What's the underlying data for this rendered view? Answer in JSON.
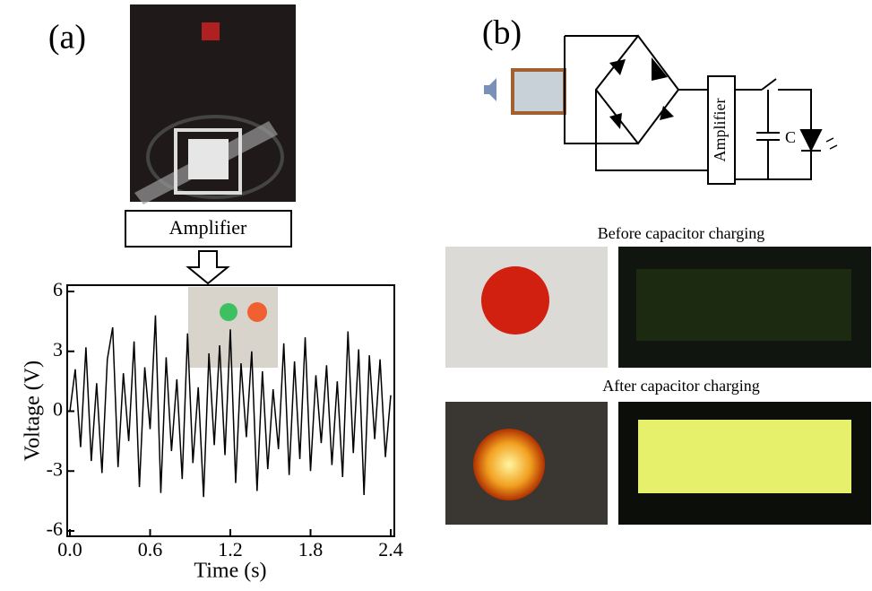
{
  "panel_a": {
    "label": "(a)",
    "amplifier": "Amplifier"
  },
  "panel_b": {
    "label": "(b)",
    "circuit": {
      "amplifier": "Amplifier",
      "capacitor": "C"
    },
    "before_caption": "Before capacitor charging",
    "after_caption": "After capacitor charging"
  },
  "chart_data": {
    "type": "line",
    "xlabel": "Time (s)",
    "ylabel": "Voltage (V)",
    "x": [
      0,
      0.04,
      0.08,
      0.12,
      0.16,
      0.2,
      0.24,
      0.28,
      0.32,
      0.36,
      0.4,
      0.44,
      0.48,
      0.52,
      0.56,
      0.6,
      0.64,
      0.68,
      0.72,
      0.76,
      0.8,
      0.84,
      0.88,
      0.92,
      0.96,
      1,
      1.04,
      1.08,
      1.12,
      1.16,
      1.2,
      1.24,
      1.28,
      1.32,
      1.36,
      1.4,
      1.44,
      1.48,
      1.52,
      1.56,
      1.6,
      1.64,
      1.68,
      1.72,
      1.76,
      1.8,
      1.84,
      1.88,
      1.92,
      1.96,
      2,
      2.04,
      2.08,
      2.12,
      2.16,
      2.2,
      2.24,
      2.28,
      2.32,
      2.36,
      2.4
    ],
    "series": [
      {
        "color": "#000000",
        "values": [
          0,
          2.1,
          -1.8,
          3.2,
          -2.5,
          1.4,
          -3.1,
          2.6,
          4.2,
          -2.8,
          1.9,
          -1.5,
          3.5,
          -3.8,
          2.2,
          -0.9,
          4.8,
          -4.1,
          2.7,
          -2.0,
          1.6,
          -3.4,
          3.9,
          -2.6,
          1.2,
          -4.3,
          2.9,
          -1.7,
          3.3,
          -2.2,
          4.1,
          -3.6,
          2.4,
          -1.3,
          3.0,
          -4.0,
          2.0,
          -2.9,
          1.1,
          -1.9,
          3.4,
          -3.2,
          2.5,
          -2.4,
          3.7,
          -3.0,
          1.8,
          -1.6,
          2.3,
          -2.7,
          1.5,
          -3.3,
          4.0,
          -2.1,
          3.1,
          -4.2,
          2.8,
          -1.4,
          2.6,
          -2.3,
          0.8
        ]
      }
    ],
    "xlim": [
      0,
      2.4
    ],
    "ylim": [
      -6,
      6
    ],
    "xticks": [
      {
        "value": 0,
        "label": "0.0"
      },
      0.6,
      1.2,
      1.8,
      2.4
    ],
    "yticks": [
      -6,
      -3,
      0,
      3,
      6
    ]
  }
}
